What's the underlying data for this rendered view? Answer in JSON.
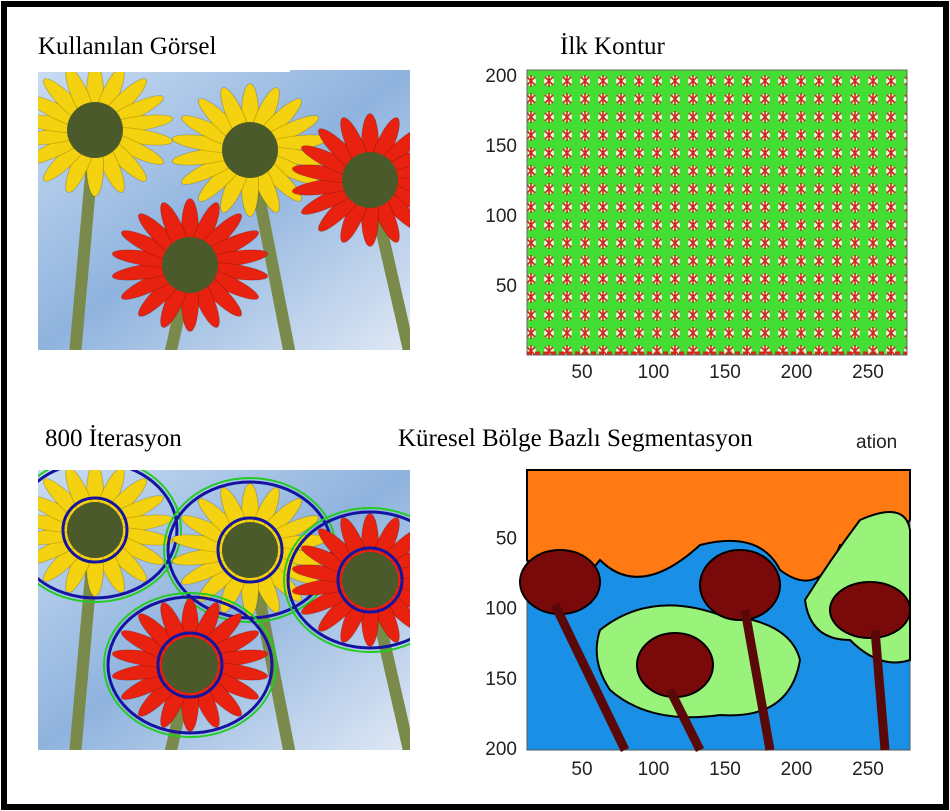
{
  "panels": [
    {
      "title": "Kullanılan Görsel"
    },
    {
      "title": "İlk Kontur",
      "yticks": [
        200,
        150,
        100,
        50
      ],
      "xticks": [
        50,
        100,
        150,
        200,
        250
      ]
    },
    {
      "title": "800 İterasyon"
    },
    {
      "title": "Küresel Bölge Bazlı Segmentasyon",
      "overflow_text": "ation",
      "yticks": [
        50,
        100,
        150,
        200
      ],
      "xticks": [
        50,
        100,
        150,
        200,
        250
      ]
    }
  ]
}
